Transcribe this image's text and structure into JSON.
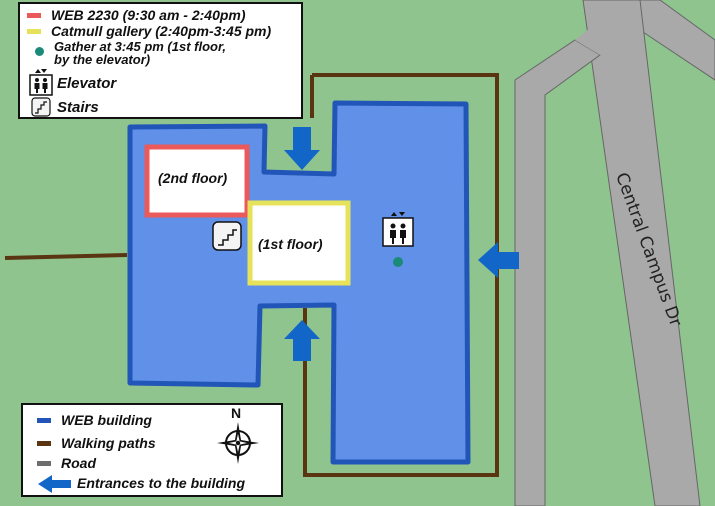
{
  "top_legend": {
    "items": [
      {
        "label": "WEB 2230 (9:30 am - 2:40pm)",
        "color": "#ea5a5a"
      },
      {
        "label": "Catmull gallery (2:40pm-3:45 pm)",
        "color": "#e6e35a"
      },
      {
        "label_line1": "Gather at 3:45 pm (1st floor,",
        "label_line2": "by the elevator)",
        "color": "#1b8a79"
      },
      {
        "label": "Elevator",
        "icon": "elevator-icon"
      },
      {
        "label": "Stairs",
        "icon": "stairs-icon"
      }
    ]
  },
  "bottom_legend": {
    "items": [
      {
        "label": "WEB building",
        "color": "#2255b8"
      },
      {
        "label": "Walking paths",
        "color": "#5a3512"
      },
      {
        "label": "Road",
        "color": "#6e6e6e"
      },
      {
        "label": "Entrances to the building",
        "color": "#1166c8",
        "icon": "arrow-left-icon"
      }
    ],
    "compass_label": "N"
  },
  "map": {
    "room_2nd": "(2nd floor)",
    "room_1st": "(1st floor)",
    "road_label": "Central Campus Dr"
  },
  "colors": {
    "grass": "#8fc48f",
    "building_fill": "#6090e8",
    "building_border": "#2255b8",
    "road": "#a9a9a9",
    "path": "#5a3512",
    "entrance": "#1166c8",
    "room_2nd_border": "#ea5a5a",
    "room_1st_border": "#e6e35a",
    "gather_dot": "#1b8a79"
  }
}
